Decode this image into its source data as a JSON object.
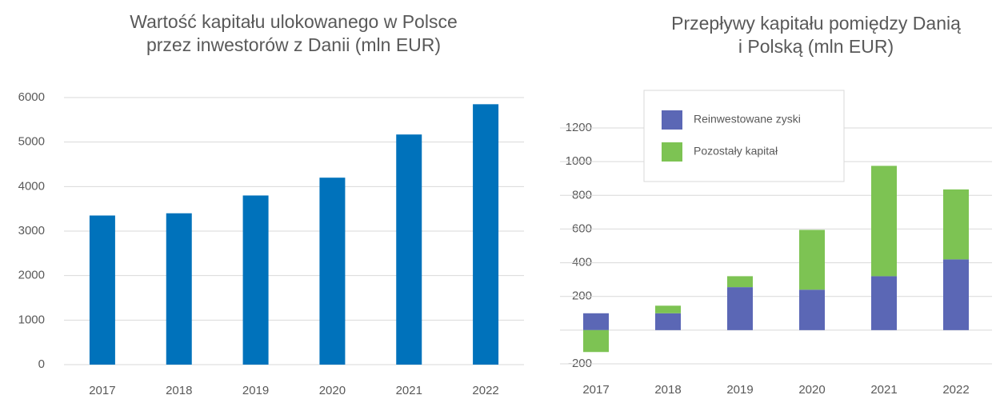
{
  "chart_data": [
    {
      "type": "bar",
      "title": [
        "Wartość kapitału ulokowanego w Polsce",
        "przez inwestorów z Danii (mln EUR)"
      ],
      "categories": [
        "2017",
        "2018",
        "2019",
        "2020",
        "2021",
        "2022"
      ],
      "values": [
        3350,
        3400,
        3800,
        4200,
        5170,
        5850
      ],
      "color": "#0072bb",
      "ylim": [
        0,
        6000
      ],
      "yticks": [
        0,
        1000,
        2000,
        3000,
        4000,
        5000,
        6000
      ],
      "grid": true
    },
    {
      "type": "stacked_bar",
      "title": [
        "Przepływy kapitału pomiędzy Danią",
        "i Polską (mln EUR)"
      ],
      "categories": [
        "2017",
        "2018",
        "2019",
        "2020",
        "2021",
        "2022"
      ],
      "series": [
        {
          "name": "Reinwestowane zyski",
          "color": "#5b67b5",
          "values": [
            100,
            100,
            255,
            240,
            320,
            420
          ]
        },
        {
          "name": "Pozostały kapitał",
          "color": "#7dc353",
          "values": [
            -130,
            45,
            65,
            355,
            655,
            415
          ]
        }
      ],
      "ylim": [
        -200,
        1200
      ],
      "yticks": [
        -200,
        0,
        200,
        400,
        600,
        800,
        1000,
        1200
      ],
      "grid": true,
      "legend": "top-left"
    }
  ]
}
